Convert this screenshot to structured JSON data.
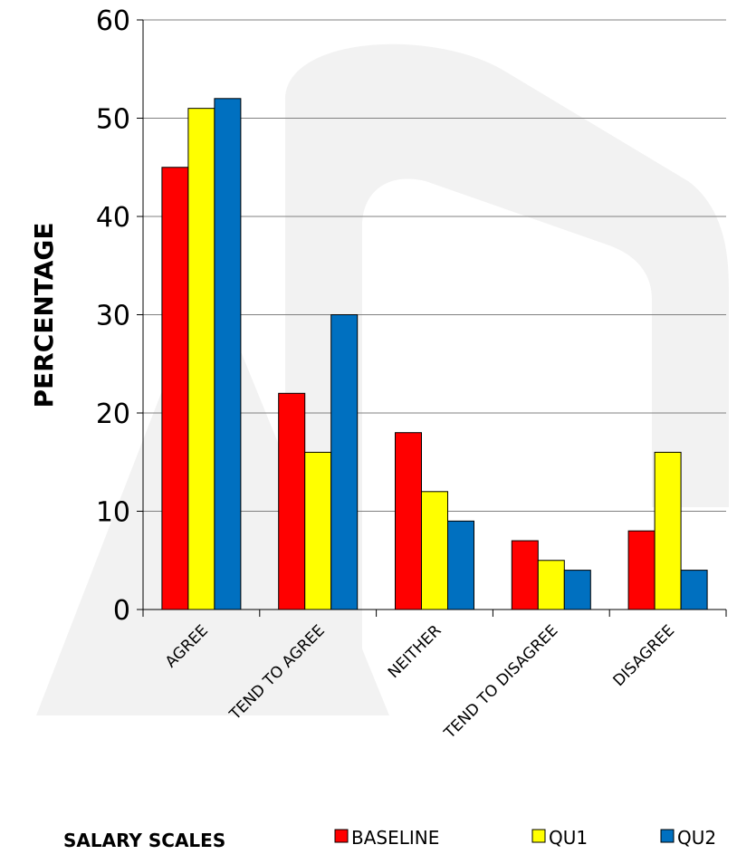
{
  "chart_data": {
    "type": "bar",
    "categories": [
      "AGREE",
      "TEND TO AGREE",
      "NEITHER",
      "TEND TO DISAGREE",
      "DISAGREE"
    ],
    "series": [
      {
        "name": "BASELINE",
        "color": "#ff0000",
        "values": [
          45,
          22,
          18,
          7,
          8
        ]
      },
      {
        "name": "QU1",
        "color": "#ffff00",
        "values": [
          51,
          16,
          12,
          5,
          16
        ]
      },
      {
        "name": "QU2",
        "color": "#0070c0",
        "values": [
          52,
          30,
          9,
          4,
          4
        ]
      }
    ],
    "title": "",
    "xlabel": "SALARY SCALES",
    "ylabel": "PERCENTAGE",
    "ylim": [
      0,
      60
    ],
    "yticks": [
      0,
      10,
      20,
      30,
      40,
      50,
      60
    ],
    "grid": true,
    "legend": "bottom"
  }
}
